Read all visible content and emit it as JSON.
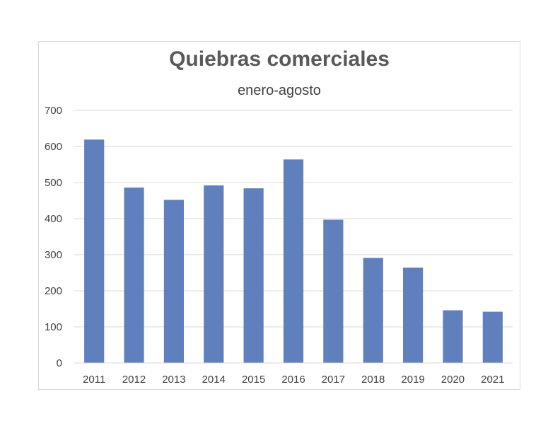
{
  "chart_data": {
    "type": "bar",
    "title": "Quiebras comerciales",
    "subtitle": "enero-agosto",
    "categories": [
      "2011",
      "2012",
      "2013",
      "2014",
      "2015",
      "2016",
      "2017",
      "2018",
      "2019",
      "2020",
      "2021"
    ],
    "values": [
      619,
      486,
      452,
      492,
      484,
      564,
      397,
      291,
      264,
      146,
      142
    ],
    "ylim": [
      0,
      700
    ],
    "yticks": [
      0,
      100,
      200,
      300,
      400,
      500,
      600,
      700
    ],
    "grid": true,
    "bar_color": "#6080bd",
    "grid_color": "#d9d9d9",
    "legend": "none"
  }
}
